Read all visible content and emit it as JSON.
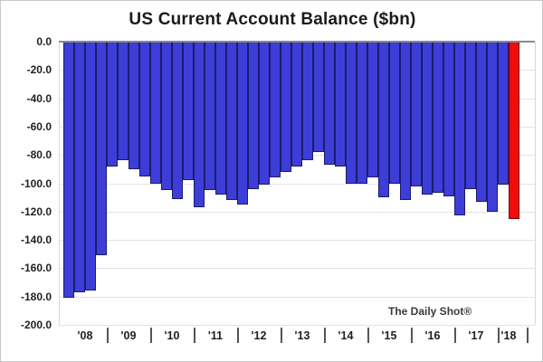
{
  "title": "US Current Account Balance ($bn)",
  "watermark": "The Daily Shot®",
  "colors": {
    "bar_fill": "#3d3dd8",
    "bar_border": "#1c1c6e",
    "highlight_fill": "#ee0c0c",
    "highlight_border": "#7a0000",
    "zero_line": "#8a8a8a",
    "gridline": "#e3e3e3",
    "axis_text": "#1f1f1f"
  },
  "chart_data": {
    "type": "bar",
    "series_name": "US Current Account Balance ($bn)",
    "categories": [
      "2008 Q1",
      "2008 Q2",
      "2008 Q3",
      "2008 Q4",
      "2009 Q1",
      "2009 Q2",
      "2009 Q3",
      "2009 Q4",
      "2010 Q1",
      "2010 Q2",
      "2010 Q3",
      "2010 Q4",
      "2011 Q1",
      "2011 Q2",
      "2011 Q3",
      "2011 Q4",
      "2012 Q1",
      "2012 Q2",
      "2012 Q3",
      "2012 Q4",
      "2013 Q1",
      "2013 Q2",
      "2013 Q3",
      "2013 Q4",
      "2014 Q1",
      "2014 Q2",
      "2014 Q3",
      "2014 Q4",
      "2015 Q1",
      "2015 Q2",
      "2015 Q3",
      "2015 Q4",
      "2016 Q1",
      "2016 Q2",
      "2016 Q3",
      "2016 Q4",
      "2017 Q1",
      "2017 Q2",
      "2017 Q3",
      "2017 Q4",
      "2018 Q1",
      "2018 Q2"
    ],
    "values": [
      -181,
      -177,
      -176,
      -151,
      -88,
      -84,
      -90,
      -95,
      -100,
      -105,
      -111,
      -98,
      -117,
      -105,
      -108,
      -112,
      -115,
      -104,
      -101,
      -96,
      -92,
      -88,
      -84,
      -78,
      -87,
      -88,
      -100,
      -100,
      -96,
      -110,
      -100,
      -112,
      -102,
      -108,
      -107,
      -109,
      -123,
      -104,
      -113,
      -120,
      -101,
      -125
    ],
    "highlight_last_bar": true,
    "xlabel": "",
    "ylabel": "",
    "x_year_labels": [
      "'08",
      "'09",
      "'10",
      "'11",
      "'12",
      "'13",
      "'14",
      "'15",
      "'16",
      "'17",
      "'18"
    ],
    "y_tick_labels": [
      "0.0",
      "-20.0",
      "-40.0",
      "-60.0",
      "-80.0",
      "-100.0",
      "-120.0",
      "-140.0",
      "-160.0",
      "-180.0",
      "-200.0"
    ],
    "ylim": [
      -200,
      0
    ],
    "y_tick_step": 20,
    "grid": true,
    "legend": "none"
  }
}
